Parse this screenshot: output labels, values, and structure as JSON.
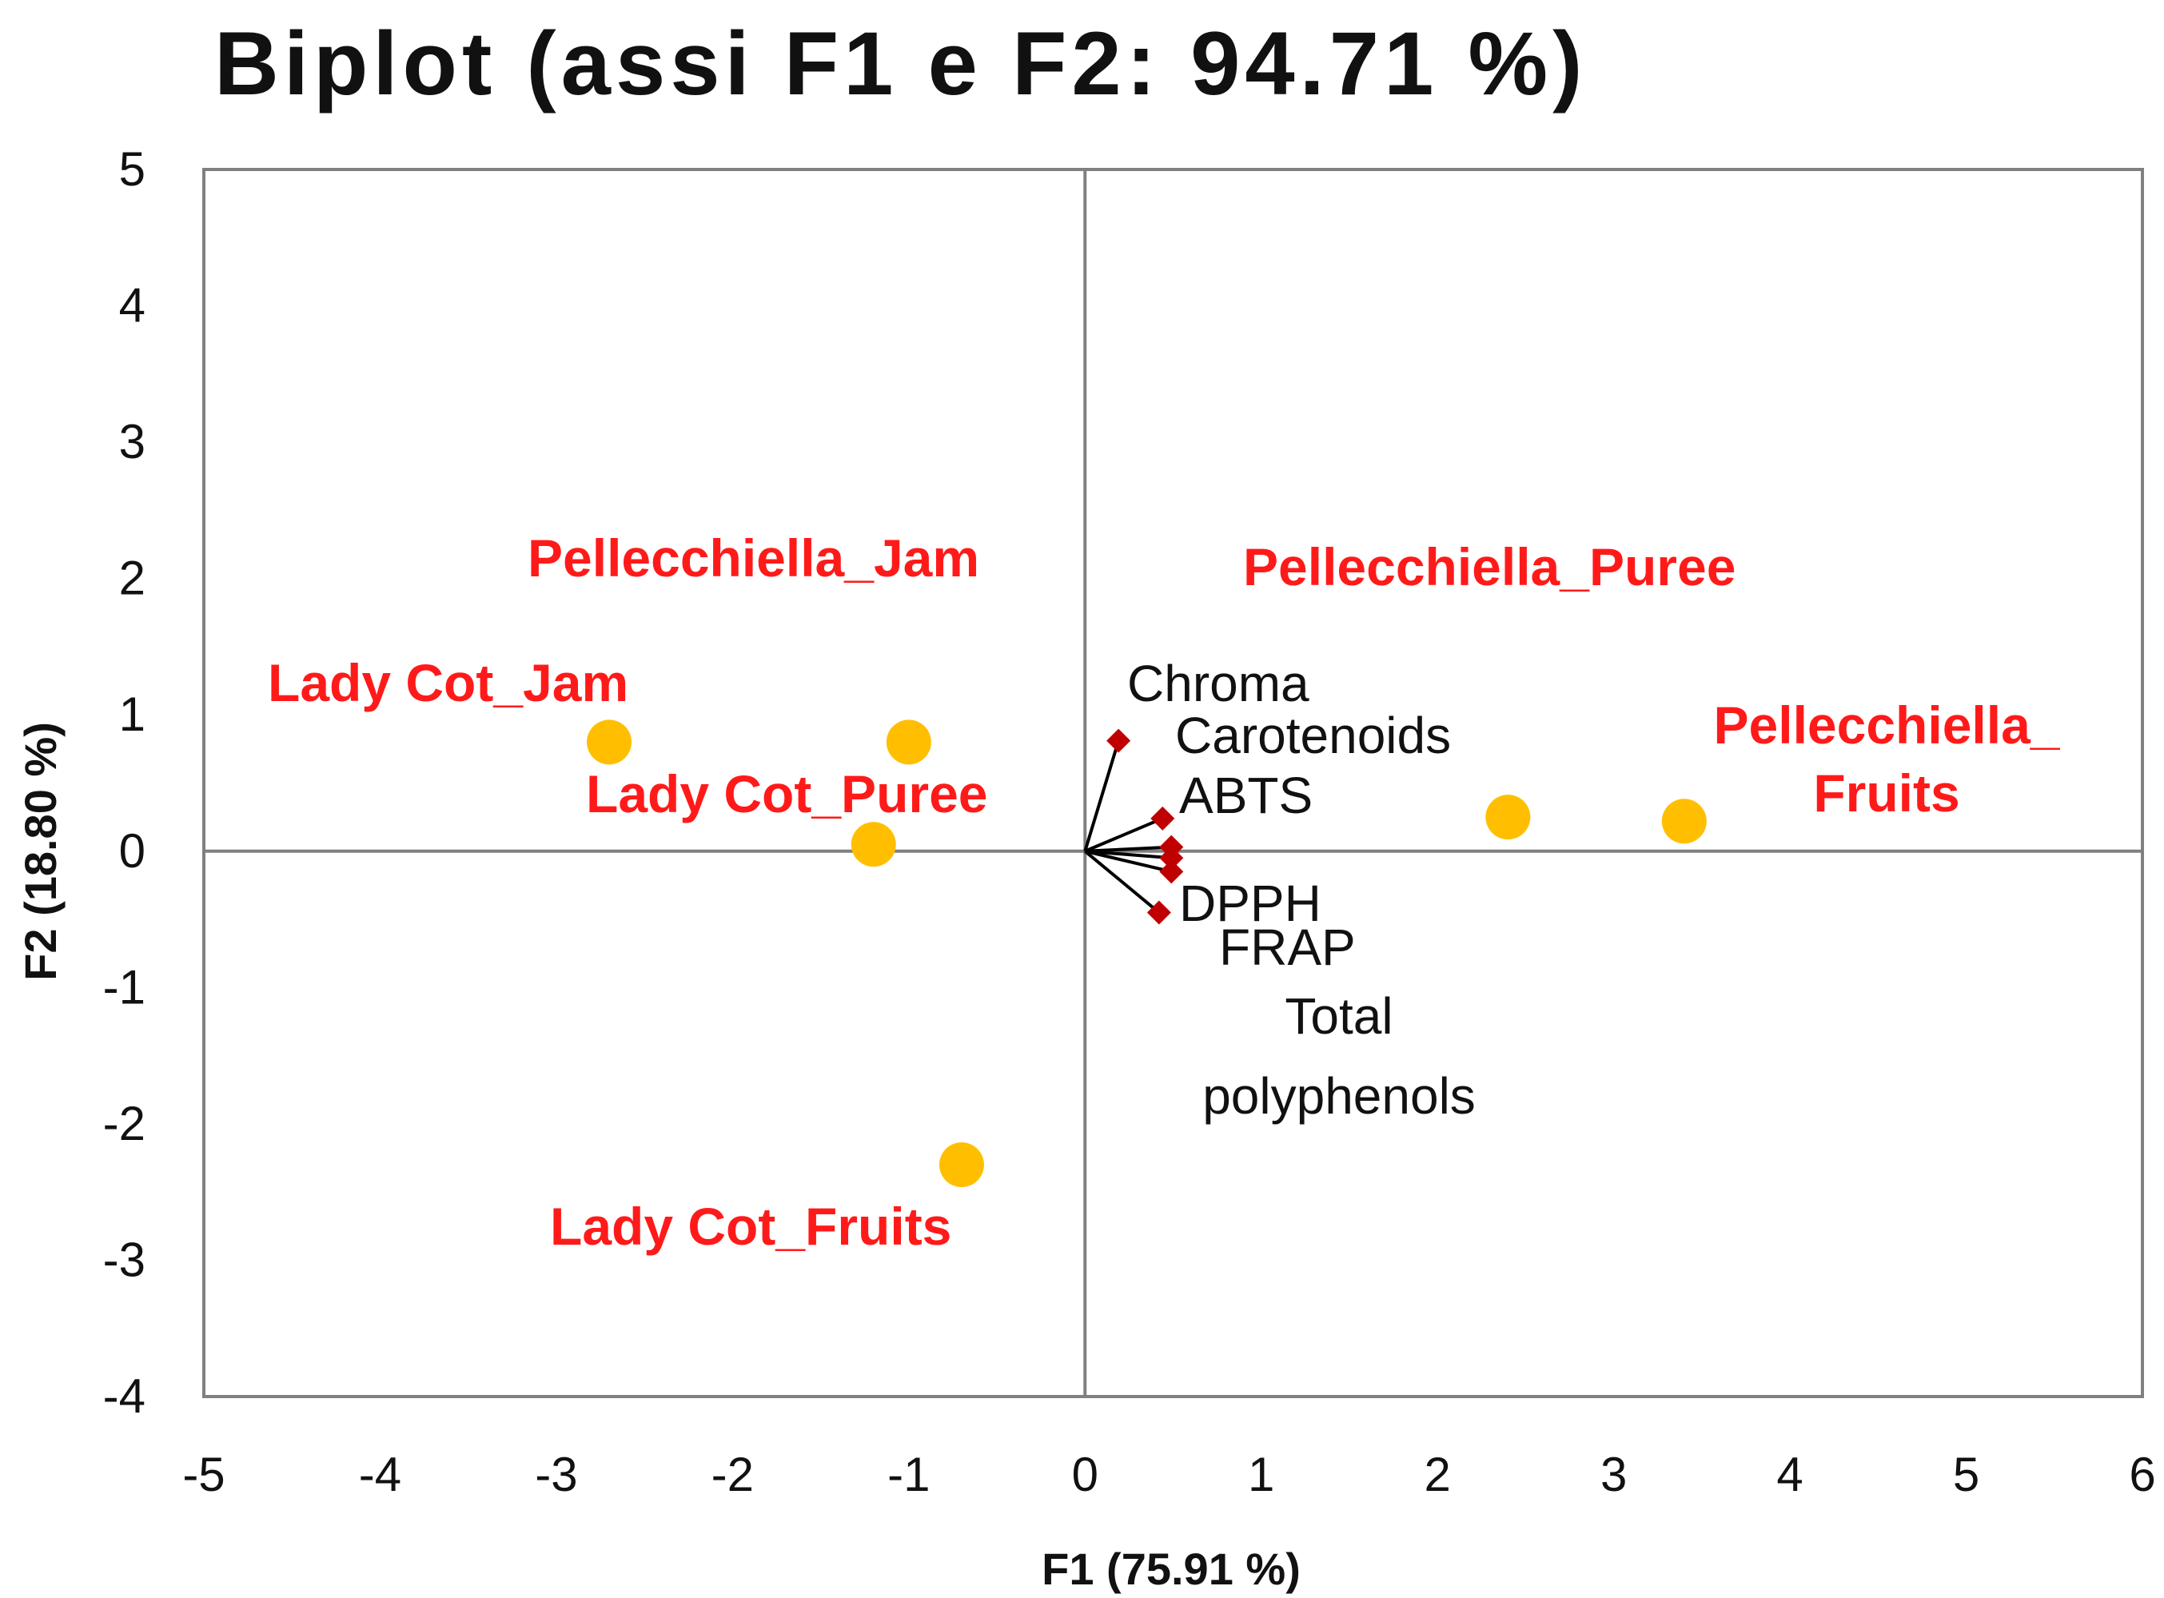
{
  "chart_data": {
    "type": "scatter",
    "subtype": "biplot",
    "title": "Biplot (assi F1 e F2: 94.71 %)",
    "xlabel": "F1 (75.91 %)",
    "ylabel": "F2 (18.80 %)",
    "xlim": [
      -5,
      6
    ],
    "ylim": [
      -4,
      5
    ],
    "xticks": [
      "-5",
      "-4",
      "-3",
      "-2",
      "-1",
      "0",
      "1",
      "2",
      "3",
      "4",
      "5",
      "6"
    ],
    "yticks": [
      "5",
      "4",
      "3",
      "2",
      "1",
      "0",
      "-1",
      "-2",
      "-3",
      "-4"
    ],
    "colors": {
      "observation": "#ffbf00",
      "observation_label": "#ff1a1a",
      "variable_marker": "#c00000",
      "vector": "#000000",
      "frame": "#808080",
      "text": "#111111"
    },
    "observations": [
      {
        "name": "Lady Cot_Jam",
        "x": -2.7,
        "y": 0.8
      },
      {
        "name": "Pellecchiella_Jam",
        "x": -1.0,
        "y": 0.8
      },
      {
        "name": "Lady Cot_Puree",
        "x": -1.2,
        "y": 0.05
      },
      {
        "name": "Lady Cot_Fruits",
        "x": -0.7,
        "y": -2.3
      },
      {
        "name": "Pellecchiella_Puree",
        "x": 2.4,
        "y": 0.25
      },
      {
        "name": "Pellecchiella_ Fruits",
        "x": 3.4,
        "y": 0.22
      }
    ],
    "variables": [
      {
        "name": "Chroma",
        "x": 0.19,
        "y": 0.81
      },
      {
        "name": "Carotenoids",
        "x": 0.44,
        "y": 0.24
      },
      {
        "name": "ABTS",
        "x": 0.49,
        "y": 0.03
      },
      {
        "name": "DPPH",
        "x": 0.49,
        "y": -0.05
      },
      {
        "name": "FRAP",
        "x": 0.49,
        "y": -0.15
      },
      {
        "name": "Total polyphenols",
        "x": 0.42,
        "y": -0.45
      }
    ],
    "observation_labels": [
      {
        "lines": [
          "Pellecchiella_Jam"
        ]
      },
      {
        "lines": [
          "Lady Cot_Jam"
        ]
      },
      {
        "lines": [
          "Lady Cot_Puree"
        ]
      },
      {
        "lines": [
          "Lady Cot_Fruits"
        ]
      },
      {
        "lines": [
          "Pellecchiella_Puree"
        ]
      },
      {
        "lines": [
          "Pellecchiella_",
          "Fruits"
        ]
      }
    ],
    "variable_labels": [
      {
        "lines": [
          "Chroma"
        ]
      },
      {
        "lines": [
          "Carotenoids"
        ]
      },
      {
        "lines": [
          "ABTS"
        ]
      },
      {
        "lines": [
          "DPPH"
        ]
      },
      {
        "lines": [
          "FRAP"
        ]
      },
      {
        "lines": [
          "Total",
          "polyphenols"
        ]
      }
    ]
  }
}
